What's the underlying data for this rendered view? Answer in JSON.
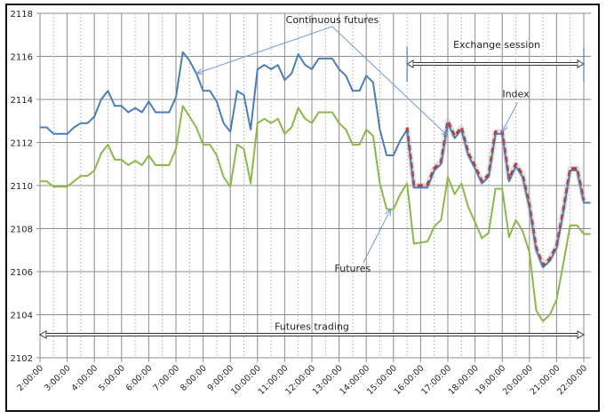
{
  "chart_data": {
    "type": "line",
    "title": "",
    "xlabel": "",
    "ylabel": "",
    "ylim": [
      2102,
      2118
    ],
    "yticks": [
      2102,
      2104,
      2106,
      2108,
      2110,
      2112,
      2114,
      2116,
      2118
    ],
    "xlim_hours": [
      2,
      22
    ],
    "xtick_labels": [
      "2:00:00",
      "3:00:00",
      "4:00:00",
      "5:00:00",
      "6:00:00",
      "7:00:00",
      "8:00:00",
      "9:00:00",
      "10:00:00",
      "11:00:00",
      "12:00:00",
      "13:00:00",
      "14:00:00",
      "15:00:00",
      "16:00:00",
      "17:00:00",
      "18:00:00",
      "19:00:00",
      "20:00:00",
      "21:00:00",
      "22:00:00"
    ],
    "grid": {
      "major_horizontal": true,
      "major_vertical": true,
      "minor_vertical_dashed": true
    },
    "legend": null,
    "series": [
      {
        "name": "Continuous futures",
        "color": "#4a7ebb",
        "style": "solid",
        "points": [
          [
            2,
            2112.7
          ],
          [
            2.25,
            2112.7
          ],
          [
            2.5,
            2112.4
          ],
          [
            2.75,
            2112.4
          ],
          [
            3,
            2112.4
          ],
          [
            3.25,
            2112.7
          ],
          [
            3.5,
            2112.9
          ],
          [
            3.75,
            2112.9
          ],
          [
            4,
            2113.2
          ],
          [
            4.25,
            2114.0
          ],
          [
            4.5,
            2114.4
          ],
          [
            4.75,
            2113.7
          ],
          [
            5,
            2113.7
          ],
          [
            5.25,
            2113.4
          ],
          [
            5.5,
            2113.6
          ],
          [
            5.75,
            2113.4
          ],
          [
            6,
            2113.9
          ],
          [
            6.25,
            2113.4
          ],
          [
            6.5,
            2113.4
          ],
          [
            6.75,
            2113.4
          ],
          [
            7,
            2114.1
          ],
          [
            7.25,
            2116.2
          ],
          [
            7.5,
            2115.8
          ],
          [
            7.75,
            2115.2
          ],
          [
            8,
            2114.4
          ],
          [
            8.25,
            2114.4
          ],
          [
            8.5,
            2113.9
          ],
          [
            8.75,
            2112.9
          ],
          [
            9,
            2112.5
          ],
          [
            9.25,
            2114.4
          ],
          [
            9.5,
            2114.2
          ],
          [
            9.75,
            2112.6
          ],
          [
            10,
            2115.4
          ],
          [
            10.25,
            2115.6
          ],
          [
            10.5,
            2115.4
          ],
          [
            10.75,
            2115.6
          ],
          [
            11,
            2114.9
          ],
          [
            11.25,
            2115.2
          ],
          [
            11.5,
            2116.1
          ],
          [
            11.75,
            2115.6
          ],
          [
            12,
            2115.4
          ],
          [
            12.25,
            2115.9
          ],
          [
            12.5,
            2115.9
          ],
          [
            12.75,
            2115.9
          ],
          [
            13,
            2115.4
          ],
          [
            13.25,
            2115.1
          ],
          [
            13.5,
            2114.4
          ],
          [
            13.75,
            2114.4
          ],
          [
            14,
            2115.1
          ],
          [
            14.25,
            2114.8
          ],
          [
            14.5,
            2112.6
          ],
          [
            14.75,
            2111.4
          ],
          [
            15,
            2111.4
          ],
          [
            15.25,
            2112.1
          ],
          [
            15.5,
            2112.6
          ],
          [
            15.75,
            2109.9
          ],
          [
            16,
            2109.9
          ],
          [
            16.25,
            2109.9
          ],
          [
            16.5,
            2110.7
          ],
          [
            16.75,
            2111.0
          ],
          [
            17,
            2112.9
          ],
          [
            17.25,
            2112.2
          ],
          [
            17.5,
            2112.6
          ],
          [
            17.75,
            2111.4
          ],
          [
            18,
            2110.8
          ],
          [
            18.25,
            2110.1
          ],
          [
            18.5,
            2110.4
          ],
          [
            18.75,
            2112.4
          ],
          [
            19,
            2112.4
          ],
          [
            19.25,
            2110.2
          ],
          [
            19.5,
            2110.9
          ],
          [
            19.75,
            2110.4
          ],
          [
            20,
            2109.0
          ],
          [
            20.25,
            2107.0
          ],
          [
            20.5,
            2106.2
          ],
          [
            20.75,
            2106.5
          ],
          [
            21,
            2107.1
          ],
          [
            21.25,
            2108.8
          ],
          [
            21.5,
            2110.7
          ],
          [
            21.75,
            2110.7
          ],
          [
            22,
            2109.2
          ],
          [
            22.25,
            2109.2
          ]
        ]
      },
      {
        "name": "Futures",
        "color": "#8cb848",
        "style": "solid",
        "points": [
          [
            2,
            2110.2
          ],
          [
            2.25,
            2110.2
          ],
          [
            2.5,
            2109.95
          ],
          [
            2.75,
            2109.95
          ],
          [
            3,
            2109.95
          ],
          [
            3.25,
            2110.2
          ],
          [
            3.5,
            2110.45
          ],
          [
            3.75,
            2110.45
          ],
          [
            4,
            2110.7
          ],
          [
            4.25,
            2111.5
          ],
          [
            4.5,
            2111.9
          ],
          [
            4.75,
            2111.2
          ],
          [
            5,
            2111.2
          ],
          [
            5.25,
            2110.95
          ],
          [
            5.5,
            2111.15
          ],
          [
            5.75,
            2110.95
          ],
          [
            6,
            2111.4
          ],
          [
            6.25,
            2110.95
          ],
          [
            6.5,
            2110.95
          ],
          [
            6.75,
            2110.95
          ],
          [
            7,
            2111.7
          ],
          [
            7.25,
            2113.7
          ],
          [
            7.5,
            2113.2
          ],
          [
            7.75,
            2112.7
          ],
          [
            8,
            2111.9
          ],
          [
            8.25,
            2111.9
          ],
          [
            8.5,
            2111.4
          ],
          [
            8.75,
            2110.4
          ],
          [
            9,
            2109.95
          ],
          [
            9.25,
            2111.9
          ],
          [
            9.5,
            2111.7
          ],
          [
            9.75,
            2110.1
          ],
          [
            10,
            2112.9
          ],
          [
            10.25,
            2113.1
          ],
          [
            10.5,
            2112.9
          ],
          [
            10.75,
            2113.1
          ],
          [
            11,
            2112.4
          ],
          [
            11.25,
            2112.7
          ],
          [
            11.5,
            2113.6
          ],
          [
            11.75,
            2113.1
          ],
          [
            12,
            2112.9
          ],
          [
            12.25,
            2113.4
          ],
          [
            12.5,
            2113.4
          ],
          [
            12.75,
            2113.4
          ],
          [
            13,
            2112.9
          ],
          [
            13.25,
            2112.6
          ],
          [
            13.5,
            2111.9
          ],
          [
            13.75,
            2111.9
          ],
          [
            14,
            2112.6
          ],
          [
            14.25,
            2112.3
          ],
          [
            14.5,
            2110.1
          ],
          [
            14.75,
            2108.9
          ],
          [
            15,
            2108.9
          ],
          [
            15.25,
            2109.6
          ],
          [
            15.5,
            2110.1
          ],
          [
            15.75,
            2107.3
          ],
          [
            16,
            2107.35
          ],
          [
            16.25,
            2107.4
          ],
          [
            16.5,
            2108.1
          ],
          [
            16.75,
            2108.4
          ],
          [
            17,
            2110.4
          ],
          [
            17.25,
            2109.6
          ],
          [
            17.5,
            2110.1
          ],
          [
            17.75,
            2109.0
          ],
          [
            18,
            2108.3
          ],
          [
            18.25,
            2107.55
          ],
          [
            18.5,
            2107.8
          ],
          [
            18.75,
            2109.85
          ],
          [
            19,
            2109.85
          ],
          [
            19.25,
            2107.6
          ],
          [
            19.5,
            2108.4
          ],
          [
            19.75,
            2107.9
          ],
          [
            20,
            2106.9
          ],
          [
            20.25,
            2104.2
          ],
          [
            20.5,
            2103.7
          ],
          [
            20.75,
            2104.0
          ],
          [
            21,
            2104.7
          ],
          [
            21.25,
            2106.4
          ],
          [
            21.5,
            2108.15
          ],
          [
            21.75,
            2108.15
          ],
          [
            22,
            2107.75
          ],
          [
            22.25,
            2107.75
          ]
        ]
      },
      {
        "name": "Index",
        "color": "#c0392b",
        "style": "dashed",
        "points": [
          [
            15.5,
            2112.7
          ],
          [
            15.75,
            2110.0
          ],
          [
            16,
            2110.0
          ],
          [
            16.25,
            2110.05
          ],
          [
            16.5,
            2110.8
          ],
          [
            16.75,
            2111.1
          ],
          [
            17,
            2113.0
          ],
          [
            17.25,
            2112.3
          ],
          [
            17.5,
            2112.7
          ],
          [
            17.75,
            2111.5
          ],
          [
            18,
            2110.9
          ],
          [
            18.25,
            2110.2
          ],
          [
            18.5,
            2110.5
          ],
          [
            18.75,
            2112.5
          ],
          [
            19,
            2112.5
          ],
          [
            19.25,
            2110.3
          ],
          [
            19.5,
            2111.0
          ],
          [
            19.75,
            2110.5
          ],
          [
            20,
            2109.1
          ],
          [
            20.25,
            2107.1
          ],
          [
            20.5,
            2106.3
          ],
          [
            20.75,
            2106.6
          ],
          [
            21,
            2107.2
          ],
          [
            21.25,
            2108.9
          ],
          [
            21.5,
            2110.8
          ],
          [
            21.75,
            2110.8
          ],
          [
            22,
            2109.3
          ]
        ]
      }
    ],
    "annotations": [
      {
        "text": "Continuous futures",
        "x_hour": 12.75,
        "y_value": 2117.55,
        "arrows_to": [
          [
            7.75,
            2115.2
          ],
          [
            17,
            2112.3
          ]
        ]
      },
      {
        "text": "Exchange session",
        "x_hour": 18.8,
        "y_value": 2116.4,
        "span": [
          15.5,
          22
        ]
      },
      {
        "text": "Index",
        "x_hour": 19.5,
        "y_value": 2114.1,
        "arrows_to": [
          [
            19,
            2112.5
          ]
        ]
      },
      {
        "text": "Futures",
        "x_hour": 13.5,
        "y_value": 2106.0,
        "arrows_to": [
          [
            14.9,
            2108.9
          ]
        ]
      },
      {
        "text": "Futures trading",
        "x_hour": 12.0,
        "y_value": 2103.3,
        "span": [
          2,
          22
        ]
      }
    ]
  }
}
